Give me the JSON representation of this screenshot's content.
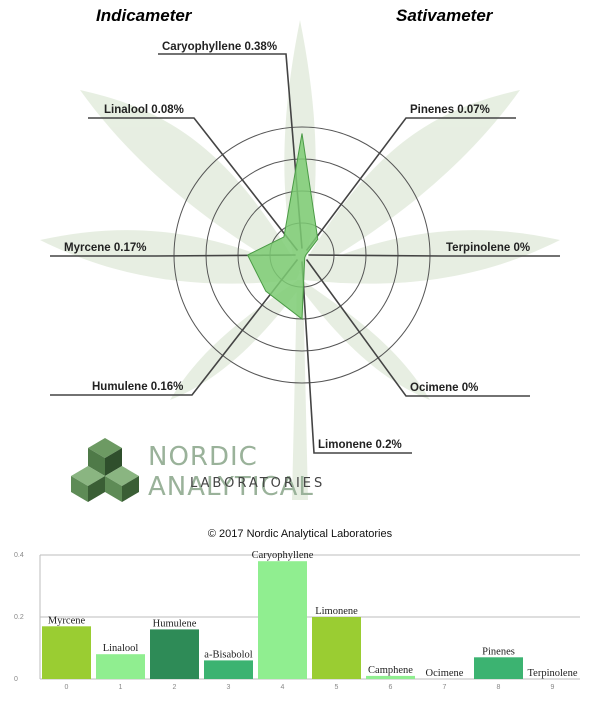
{
  "radar": {
    "left_title": "Indicameter",
    "right_title": "Sativameter",
    "labels": [
      {
        "text": "Caryophyllene 0.38%",
        "name": "label-caryophyllene"
      },
      {
        "text": "Pinenes 0.07%",
        "name": "label-pinenes"
      },
      {
        "text": "Terpinolene 0%",
        "name": "label-terpinolene"
      },
      {
        "text": "Ocimene 0%",
        "name": "label-ocimene"
      },
      {
        "text": "Limonene 0.2%",
        "name": "label-limonene"
      },
      {
        "text": "Humulene 0.16%",
        "name": "label-humulene"
      },
      {
        "text": "Myrcene 0.17%",
        "name": "label-myrcene"
      },
      {
        "text": "Linalool 0.08%",
        "name": "label-linalool"
      }
    ]
  },
  "logo": {
    "name": "NORDIC ANALYTICAL",
    "sub": "LABORATORIES"
  },
  "copyright": "© 2017 Nordic Analytical Laboratories",
  "chart_data": [
    {
      "type": "radar",
      "categories": [
        "Caryophyllene",
        "Pinenes",
        "Terpinolene",
        "Ocimene",
        "Limonene",
        "Humulene",
        "Myrcene",
        "Linalool"
      ],
      "values": [
        0.38,
        0.07,
        0,
        0,
        0.2,
        0.16,
        0.17,
        0.08
      ],
      "unit": "%",
      "fill_color": "#7ccb73",
      "grid": "concentric"
    },
    {
      "type": "bar",
      "categories": [
        "Myrcene",
        "Linalool",
        "Humulene",
        "a-Bisabolol",
        "Caryophyllene",
        "Limonene",
        "Camphene",
        "Ocimene",
        "Pinenes",
        "Terpinolene"
      ],
      "x": [
        0,
        1,
        2,
        3,
        4,
        5,
        6,
        7,
        8,
        9
      ],
      "values": [
        0.17,
        0.08,
        0.16,
        0.06,
        0.38,
        0.2,
        0.01,
        0,
        0.07,
        0
      ],
      "colors": [
        "#9acd32",
        "#90ee90",
        "#2e8b57",
        "#3cb371",
        "#90ee90",
        "#9acd32",
        "#90ee90",
        "#90ee90",
        "#3cb371",
        "#90ee90"
      ],
      "ylim": [
        0,
        0.4
      ],
      "yticks": [
        "0",
        "0.2",
        "0.4"
      ],
      "grid": true
    }
  ]
}
